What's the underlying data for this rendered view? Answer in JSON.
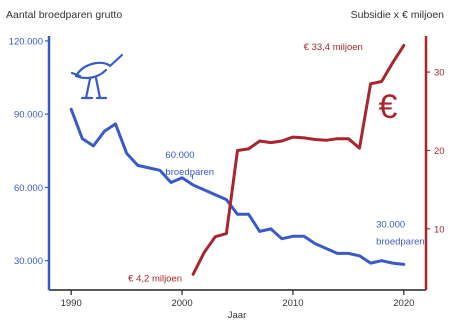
{
  "chart_data": {
    "type": "line",
    "y_left_label": "Aantal broedparen grutto",
    "y_right_label": "Subsidie x € miljoen",
    "xlabel": "Jaar",
    "xlim": [
      1988,
      2022
    ],
    "x_ticks": [
      "1990",
      "2000",
      "2010",
      "2020"
    ],
    "y_left_lim": [
      18000,
      122000
    ],
    "y_left_ticks": [
      "120.000",
      "90.000",
      "60.000",
      "30.000"
    ],
    "y_right_lim": [
      2.2,
      34.6
    ],
    "y_right_ticks": [
      "30",
      "20",
      "10"
    ],
    "colors": {
      "broedparen": "#3a5bc7",
      "subsidie": "#a8262d",
      "axis": "#222222",
      "text": "#333333"
    },
    "icons": {
      "bird": "grutto-bird-icon",
      "currency": "euro-icon"
    },
    "series": [
      {
        "axis": "left",
        "x": [
          1990,
          1991,
          1992,
          1993,
          1994,
          1995,
          1996,
          1997,
          1998,
          1999,
          2000,
          2001,
          2002,
          2003,
          2004,
          2005,
          2006,
          2007,
          2008,
          2009,
          2010,
          2011,
          2012,
          2013,
          2014,
          2015,
          2016,
          2017,
          2018,
          2019,
          2020
        ],
        "values": [
          92000,
          80000,
          77000,
          83000,
          86000,
          74000,
          69000,
          68000,
          67000,
          62000,
          64000,
          61000,
          59000,
          57000,
          55000,
          49000,
          49000,
          42000,
          43000,
          39000,
          40000,
          40000,
          37000,
          35000,
          33000,
          33000,
          32000,
          29000,
          30000,
          29000,
          28500
        ]
      },
      {
        "axis": "right",
        "x": [
          2001,
          2002,
          2003,
          2004,
          2005,
          2006,
          2007,
          2008,
          2009,
          2010,
          2011,
          2012,
          2013,
          2014,
          2015,
          2016,
          2017,
          2018,
          2019,
          2020
        ],
        "values": [
          4.2,
          7,
          9,
          9.4,
          20,
          20.2,
          21.2,
          21,
          21.2,
          21.7,
          21.6,
          21.4,
          21.3,
          21.5,
          21.5,
          20.3,
          28.5,
          28.8,
          31.2,
          33.4
        ]
      }
    ],
    "annotations": [
      {
        "lines": [
          "60.000",
          "broedparen"
        ],
        "color": "#3a5bc7",
        "x": 1998.5,
        "y": 72000,
        "pointer_to_y": 64000
      },
      {
        "lines": [
          "30.000",
          "broedparen"
        ],
        "color": "#3a5bc7",
        "x": 2017.5,
        "y": 43500
      },
      {
        "lines": [
          "€ 33,4 miljoen"
        ],
        "color": "#a8262d",
        "x": 2016.3,
        "axis": "right",
        "y": 32.8,
        "anchor": "end"
      },
      {
        "lines": [
          "€ 4,2 miljoen"
        ],
        "color": "#a8262d",
        "x": 2000,
        "axis": "right",
        "y": 3.3,
        "anchor": "end"
      }
    ]
  }
}
